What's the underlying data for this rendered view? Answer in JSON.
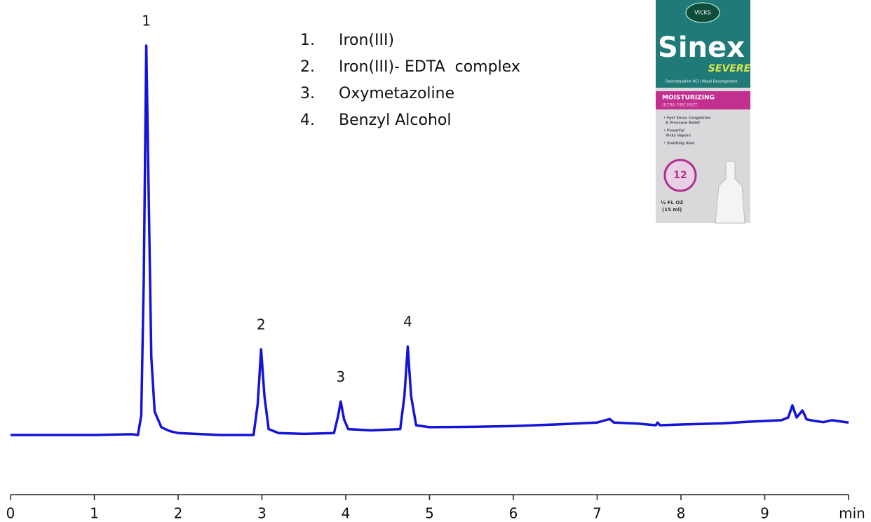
{
  "chart_data": {
    "type": "line",
    "color": "#1414d8",
    "x": [
      0,
      0.5,
      1.0,
      1.45,
      1.52,
      1.56,
      1.59,
      1.62,
      1.65,
      1.68,
      1.72,
      1.8,
      1.9,
      2.0,
      2.5,
      2.9,
      2.95,
      2.99,
      3.03,
      3.08,
      3.2,
      3.5,
      3.86,
      3.91,
      3.94,
      3.98,
      4.03,
      4.3,
      4.65,
      4.7,
      4.74,
      4.78,
      4.84,
      5.0,
      5.5,
      6.0,
      6.5,
      6.8,
      7.0,
      7.15,
      7.2,
      7.5,
      7.7,
      7.72,
      7.75,
      8.0,
      8.5,
      8.8,
      9.2,
      9.28,
      9.33,
      9.38,
      9.45,
      9.5,
      9.6,
      9.7,
      9.8,
      9.9,
      10.0
    ],
    "values": [
      0,
      0,
      0,
      0.2,
      0,
      5,
      40,
      100,
      60,
      20,
      6,
      2,
      1,
      0.5,
      0,
      0,
      8,
      22,
      10,
      1.5,
      0.5,
      0.3,
      0.5,
      5,
      8.6,
      4,
      1.5,
      1.2,
      1.5,
      10,
      22.7,
      10,
      2.5,
      2,
      2.1,
      2.3,
      2.7,
      3,
      3.2,
      4.1,
      3.2,
      2.9,
      2.5,
      3.2,
      2.5,
      2.7,
      3,
      3.4,
      3.8,
      4.5,
      7.6,
      4.5,
      6.3,
      4,
      3.6,
      3.3,
      3.8,
      3.5,
      3.2
    ],
    "xlim": [
      0,
      10
    ],
    "xticks": [
      0,
      1,
      2,
      3,
      4,
      5,
      6,
      7,
      8,
      9
    ],
    "ylim": [
      0,
      100
    ],
    "xlabel": "min",
    "peaks": [
      {
        "label": "1",
        "x": 1.62
      },
      {
        "label": "2",
        "x": 2.99
      },
      {
        "label": "3",
        "x": 3.94
      },
      {
        "label": "4",
        "x": 4.74
      }
    ],
    "compounds": [
      {
        "number": "1.",
        "name": "Iron(III)"
      },
      {
        "number": "2.",
        "name": "Iron(III)- EDTA  complex"
      },
      {
        "number": "3.",
        "name": "Oxymetazoline"
      },
      {
        "number": "4.",
        "name": "Benzyl Alcohol"
      }
    ]
  },
  "product": {
    "brand": "VICKS",
    "name": "Sinex",
    "variant": "SEVERE",
    "subtitle": "Oxymetazoline HCl | Nasal Decongestant",
    "band": "MOISTURIZING",
    "band_sub": "ULTRA FINE MIST",
    "bullets": [
      "• Fast Sinus Congestion",
      "& Pressure Relief",
      "• Powerful",
      "Vicks Vapors",
      "• Soothing Aloe"
    ],
    "badge": "12",
    "size": "½ FL OZ",
    "size_ml": "(15 ml)"
  }
}
